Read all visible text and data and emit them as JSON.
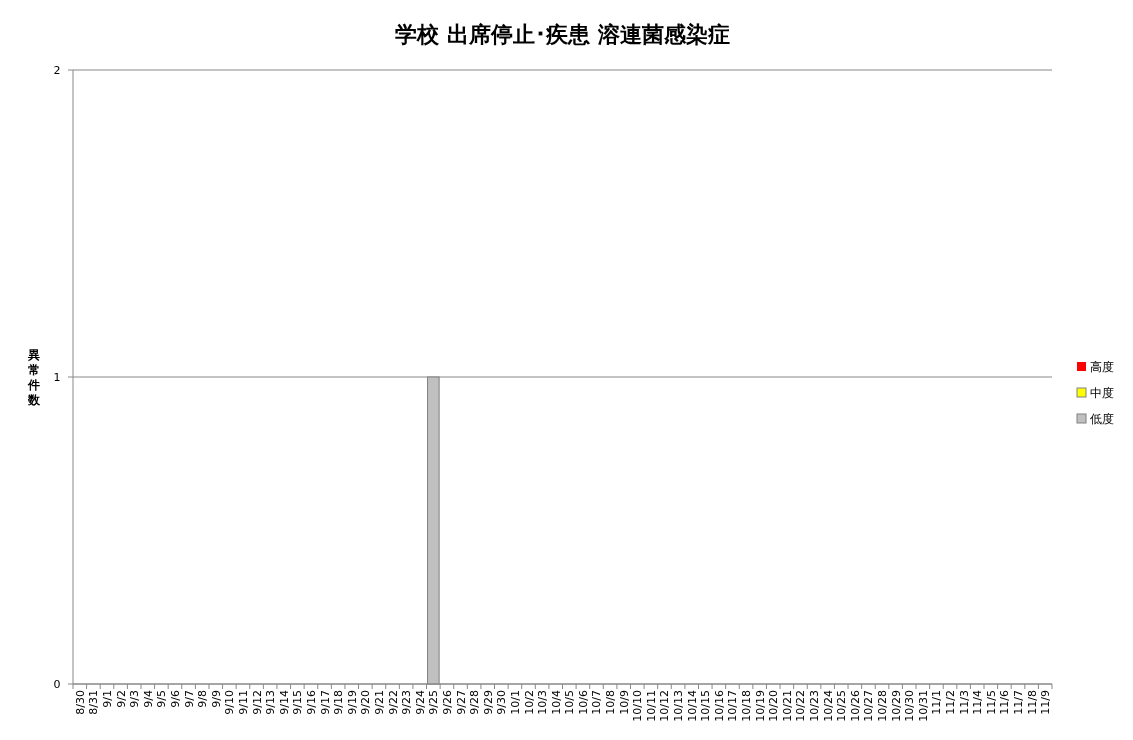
{
  "chart_data": {
    "type": "bar",
    "title": "学校 出席停止･疾患 溶連菌感染症",
    "ylabel": "異常件数",
    "categories": [
      "8/30",
      "8/31",
      "9/1",
      "9/2",
      "9/3",
      "9/4",
      "9/5",
      "9/6",
      "9/7",
      "9/8",
      "9/9",
      "9/10",
      "9/11",
      "9/12",
      "9/13",
      "9/14",
      "9/15",
      "9/16",
      "9/17",
      "9/18",
      "9/19",
      "9/20",
      "9/21",
      "9/22",
      "9/23",
      "9/24",
      "9/25",
      "9/26",
      "9/27",
      "9/28",
      "9/29",
      "9/30",
      "10/1",
      "10/2",
      "10/3",
      "10/4",
      "10/5",
      "10/6",
      "10/7",
      "10/8",
      "10/9",
      "10/10",
      "10/11",
      "10/12",
      "10/13",
      "10/14",
      "10/15",
      "10/16",
      "10/17",
      "10/18",
      "10/19",
      "10/20",
      "10/21",
      "10/22",
      "10/23",
      "10/24",
      "10/25",
      "10/26",
      "10/27",
      "10/28",
      "10/29",
      "10/30",
      "10/31",
      "11/1",
      "11/2",
      "11/3",
      "11/4",
      "11/5",
      "11/6",
      "11/7",
      "11/8",
      "11/9"
    ],
    "series": [
      {
        "name": "高度",
        "color": "#ff0000",
        "values": [
          0,
          0,
          0,
          0,
          0,
          0,
          0,
          0,
          0,
          0,
          0,
          0,
          0,
          0,
          0,
          0,
          0,
          0,
          0,
          0,
          0,
          0,
          0,
          0,
          0,
          0,
          0,
          0,
          0,
          0,
          0,
          0,
          0,
          0,
          0,
          0,
          0,
          0,
          0,
          0,
          0,
          0,
          0,
          0,
          0,
          0,
          0,
          0,
          0,
          0,
          0,
          0,
          0,
          0,
          0,
          0,
          0,
          0,
          0,
          0,
          0,
          0,
          0,
          0,
          0,
          0,
          0,
          0,
          0,
          0,
          0,
          0
        ]
      },
      {
        "name": "中度",
        "color": "#ffff00",
        "values": [
          0,
          0,
          0,
          0,
          0,
          0,
          0,
          0,
          0,
          0,
          0,
          0,
          0,
          0,
          0,
          0,
          0,
          0,
          0,
          0,
          0,
          0,
          0,
          0,
          0,
          0,
          0,
          0,
          0,
          0,
          0,
          0,
          0,
          0,
          0,
          0,
          0,
          0,
          0,
          0,
          0,
          0,
          0,
          0,
          0,
          0,
          0,
          0,
          0,
          0,
          0,
          0,
          0,
          0,
          0,
          0,
          0,
          0,
          0,
          0,
          0,
          0,
          0,
          0,
          0,
          0,
          0,
          0,
          0,
          0,
          0,
          0
        ]
      },
      {
        "name": "低度",
        "color": "#c0c0c0",
        "values": [
          0,
          0,
          0,
          0,
          0,
          0,
          0,
          0,
          0,
          0,
          0,
          0,
          0,
          0,
          0,
          0,
          0,
          0,
          0,
          0,
          0,
          0,
          0,
          0,
          0,
          0,
          1,
          0,
          0,
          0,
          0,
          0,
          0,
          0,
          0,
          0,
          0,
          0,
          0,
          0,
          0,
          0,
          0,
          0,
          0,
          0,
          0,
          0,
          0,
          0,
          0,
          0,
          0,
          0,
          0,
          0,
          0,
          0,
          0,
          0,
          0,
          0,
          0,
          0,
          0,
          0,
          0,
          0,
          0,
          0,
          0,
          0
        ]
      }
    ],
    "stacked": true,
    "ylim": [
      0,
      2
    ],
    "yticks": [
      0,
      1,
      2
    ],
    "grid": "y",
    "legend": "right"
  }
}
